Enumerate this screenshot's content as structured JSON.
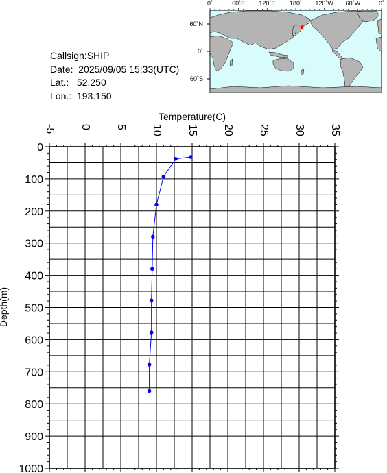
{
  "station": {
    "callsign_label": "Callsign:",
    "callsign": "SHIP",
    "date_label": "Date:",
    "date": "2025/09/05 15:33(UTC)",
    "lat_label": "Lat.:",
    "lat": "52.250",
    "lon_label": "Lon.:",
    "lon": "193.150"
  },
  "map": {
    "top_labels": [
      "0˚",
      "60˚E",
      "120˚E",
      "180˚",
      "120˚W",
      "60˚W",
      "0˚"
    ],
    "left_labels": [
      "60˚N",
      "0˚",
      "60˚S"
    ],
    "ocean_color": "#d8fcfc",
    "land_color": "#b4b4b4",
    "marker_color": "#ff0000",
    "marker_lon": 193.15,
    "marker_lat": 52.25
  },
  "chart_data": {
    "type": "line",
    "title": "",
    "xlabel": "Temperature(C)",
    "ylabel": "Depth(m)",
    "xlim": [
      -5,
      35
    ],
    "ylim": [
      0,
      1000
    ],
    "y_inverted": true,
    "x_axis_position": "top",
    "grid": true,
    "x_ticks": [
      "-5",
      "0",
      "5",
      "10",
      "15",
      "20",
      "25",
      "30",
      "35"
    ],
    "y_ticks": [
      "0",
      "100",
      "200",
      "300",
      "400",
      "500",
      "600",
      "700",
      "800",
      "900",
      "1000"
    ],
    "series": [
      {
        "color": "#0000ff",
        "points": [
          {
            "x": 14.8,
            "y": 32
          },
          {
            "x": 12.7,
            "y": 38
          },
          {
            "x": 11.0,
            "y": 93
          },
          {
            "x": 10.0,
            "y": 180
          },
          {
            "x": 9.5,
            "y": 280
          },
          {
            "x": 9.4,
            "y": 380
          },
          {
            "x": 9.3,
            "y": 478
          },
          {
            "x": 9.3,
            "y": 578
          },
          {
            "x": 9.0,
            "y": 678
          },
          {
            "x": 9.0,
            "y": 760
          }
        ]
      }
    ]
  }
}
